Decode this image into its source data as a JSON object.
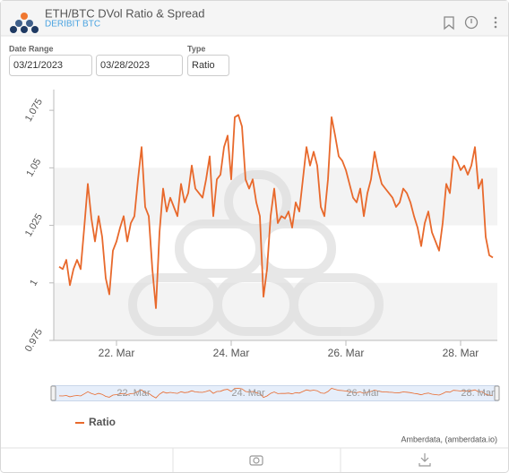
{
  "header": {
    "title": "ETH/BTC DVol Ratio & Spread",
    "subtitle": "DERIBIT BTC"
  },
  "controls": {
    "date_range_label": "Date Range",
    "start_date": "03/21/2023",
    "end_date": "03/28/2023",
    "type_label": "Type",
    "type_value": "Ratio"
  },
  "credit": "Amberdata, (amberdata.io)",
  "chart_data": {
    "type": "line",
    "x": [
      21,
      21.0625,
      21.125,
      21.1875,
      21.25,
      21.3125,
      21.375,
      21.4375,
      21.5,
      21.5625,
      21.625,
      21.6875,
      21.75,
      21.8125,
      21.875,
      21.9375,
      22,
      22.0625,
      22.125,
      22.1875,
      22.25,
      22.3125,
      22.375,
      22.4375,
      22.5,
      22.5625,
      22.625,
      22.6875,
      22.75,
      22.8125,
      22.875,
      22.9375,
      23,
      23.0625,
      23.125,
      23.1875,
      23.25,
      23.3125,
      23.375,
      23.4375,
      23.5,
      23.5625,
      23.625,
      23.6875,
      23.75,
      23.8125,
      23.875,
      23.9375,
      24,
      24.0625,
      24.125,
      24.1875,
      24.25,
      24.3125,
      24.375,
      24.4375,
      24.5,
      24.5625,
      24.625,
      24.6875,
      24.75,
      24.8125,
      24.875,
      24.9375,
      25,
      25.0625,
      25.125,
      25.1875,
      25.25,
      25.3125,
      25.375,
      25.4375,
      25.5,
      25.5625,
      25.625,
      25.6875,
      25.75,
      25.8125,
      25.875,
      25.9375,
      26,
      26.0625,
      26.125,
      26.1875,
      26.25,
      26.3125,
      26.375,
      26.4375,
      26.5,
      26.5625,
      26.625,
      26.6875,
      26.75,
      26.8125,
      26.875,
      26.9375,
      27,
      27.0625,
      27.125,
      27.1875,
      27.25,
      27.3125,
      27.375,
      27.4375,
      27.5,
      27.5625,
      27.625,
      27.6875,
      27.75,
      27.8125,
      27.875,
      27.9375,
      28,
      28.0625,
      28.125,
      28.1875,
      28.25,
      28.3125,
      28.375,
      28.4375,
      28.5,
      28.5625
    ],
    "series": [
      {
        "name": "Ratio",
        "color": "#e8692c",
        "values": [
          1.007,
          1.006,
          1.01,
          0.999,
          1.006,
          1.01,
          1.006,
          1.024,
          1.043,
          1.028,
          1.018,
          1.029,
          1.02,
          1.002,
          0.995,
          1.014,
          1.018,
          1.024,
          1.029,
          1.018,
          1.026,
          1.029,
          1.045,
          1.059,
          1.033,
          1.029,
          1.006,
          0.989,
          1.022,
          1.041,
          1.031,
          1.037,
          1.033,
          1.029,
          1.043,
          1.035,
          1.039,
          1.051,
          1.041,
          1.039,
          1.037,
          1.045,
          1.055,
          1.029,
          1.045,
          1.047,
          1.059,
          1.064,
          1.045,
          1.072,
          1.073,
          1.068,
          1.045,
          1.041,
          1.045,
          1.035,
          1.029,
          0.994,
          1.006,
          1.029,
          1.041,
          1.026,
          1.029,
          1.028,
          1.031,
          1.024,
          1.035,
          1.031,
          1.045,
          1.059,
          1.051,
          1.057,
          1.051,
          1.033,
          1.029,
          1.045,
          1.072,
          1.064,
          1.055,
          1.053,
          1.049,
          1.043,
          1.037,
          1.035,
          1.041,
          1.029,
          1.039,
          1.045,
          1.057,
          1.049,
          1.043,
          1.041,
          1.039,
          1.037,
          1.033,
          1.035,
          1.041,
          1.039,
          1.035,
          1.029,
          1.024,
          1.016,
          1.026,
          1.031,
          1.022,
          1.018,
          1.014,
          1.026,
          1.043,
          1.039,
          1.055,
          1.053,
          1.049,
          1.051,
          1.047,
          1.051,
          1.059,
          1.041,
          1.045,
          1.02,
          1.012,
          1.011
        ]
      }
    ],
    "xlim": [
      20.906,
      28.641
    ],
    "xticks": [
      {
        "value": 22,
        "label": "22. Mar"
      },
      {
        "value": 24,
        "label": "24. Mar"
      },
      {
        "value": 26,
        "label": "26. Mar"
      },
      {
        "value": 28,
        "label": "28. Mar"
      }
    ],
    "ylim": [
      0.975,
      1.084
    ],
    "yticks": [
      0.975,
      1,
      1.025,
      1.05,
      1.075
    ]
  }
}
